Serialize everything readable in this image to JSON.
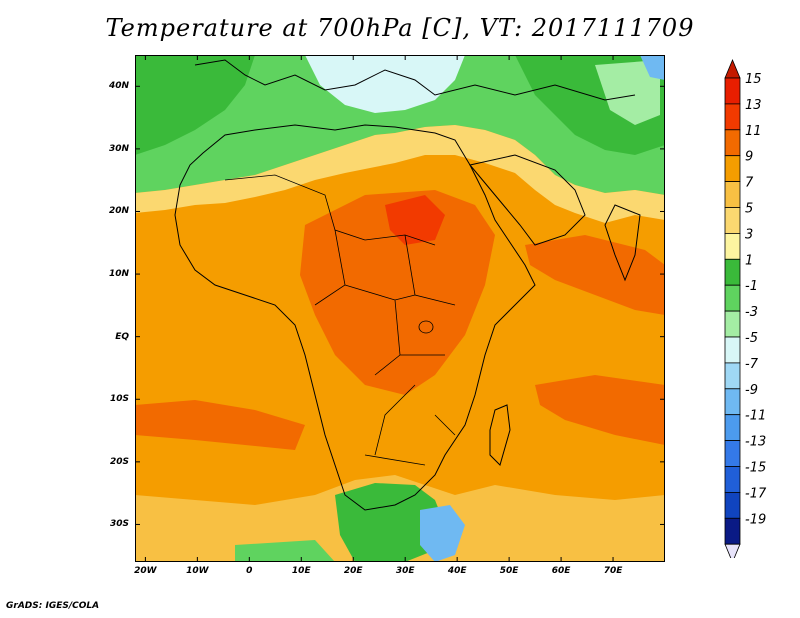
{
  "title": "Temperature at 700hPa [C], VT: 2017111709",
  "footer": "GrADS: IGES/COLA",
  "map": {
    "lon_range": [
      -22,
      80
    ],
    "lat_range": [
      -36,
      45
    ],
    "lat_labels": [
      {
        "lat": 40,
        "text": "40N"
      },
      {
        "lat": 30,
        "text": "30N"
      },
      {
        "lat": 20,
        "text": "20N"
      },
      {
        "lat": 10,
        "text": "10N"
      },
      {
        "lat": 0,
        "text": "EQ"
      },
      {
        "lat": -10,
        "text": "10S"
      },
      {
        "lat": -20,
        "text": "20S"
      },
      {
        "lat": -30,
        "text": "30S"
      }
    ],
    "lon_labels": [
      {
        "lon": -20,
        "text": "20W"
      },
      {
        "lon": -10,
        "text": "10W"
      },
      {
        "lon": 0,
        "text": "0"
      },
      {
        "lon": 10,
        "text": "10E"
      },
      {
        "lon": 20,
        "text": "20E"
      },
      {
        "lon": 30,
        "text": "30E"
      },
      {
        "lon": 40,
        "text": "40E"
      },
      {
        "lon": 50,
        "text": "50E"
      },
      {
        "lon": 60,
        "text": "60E"
      },
      {
        "lon": 70,
        "text": "70E"
      }
    ]
  },
  "colorbar": {
    "levels": [
      {
        "label": "15",
        "color": "#e81e00"
      },
      {
        "label": "13",
        "color": "#f23a00"
      },
      {
        "label": "11",
        "color": "#f26a00"
      },
      {
        "label": "9",
        "color": "#f59d00"
      },
      {
        "label": "7",
        "color": "#f8c043"
      },
      {
        "label": "5",
        "color": "#fbd870"
      },
      {
        "label": "3",
        "color": "#fdf5a0"
      },
      {
        "label": "1",
        "color": "#3aba3a"
      },
      {
        "label": "-1",
        "color": "#5fd35f"
      },
      {
        "label": "-3",
        "color": "#a4eda4"
      },
      {
        "label": "-5",
        "color": "#d8f7f7"
      },
      {
        "label": "-7",
        "color": "#9fd8f5"
      },
      {
        "label": "-9",
        "color": "#6fb9f2"
      },
      {
        "label": "-11",
        "color": "#4c9bee"
      },
      {
        "label": "-13",
        "color": "#3479e8"
      },
      {
        "label": "-15",
        "color": "#205fd8"
      },
      {
        "label": "-17",
        "color": "#1044bf"
      },
      {
        "label": "-19",
        "color": "#0a1a85"
      }
    ],
    "top_arrow_color": "#c41a00",
    "bottom_arrow_color": "#e8e4fb"
  }
}
